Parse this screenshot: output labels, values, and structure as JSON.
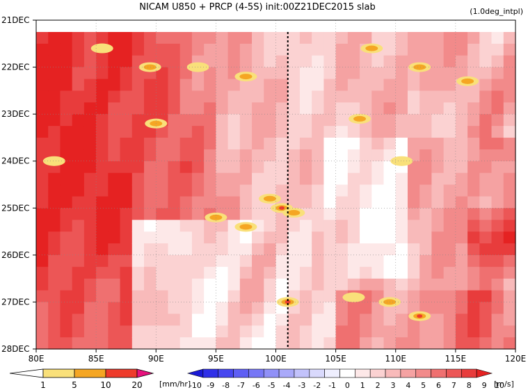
{
  "chart_data": {
    "type": "heatmap",
    "title": "NICAM   U850 + PRCP (4-5S) init:00Z21DEC2015 slab",
    "subtitle": "(1.0deg_intpl)",
    "x_ticks": [
      "80E",
      "85E",
      "90E",
      "95E",
      "100E",
      "105E",
      "110E",
      "115E",
      "120E"
    ],
    "x_tick_values": [
      80,
      85,
      90,
      95,
      100,
      105,
      110,
      115,
      120
    ],
    "y_ticks": [
      "21DEC",
      "22DEC",
      "23DEC",
      "24DEC",
      "25DEC",
      "26DEC",
      "27DEC",
      "28DEC"
    ],
    "y_tick_values": [
      21,
      22,
      23,
      24,
      25,
      26,
      27,
      28
    ],
    "xlim": [
      80,
      120
    ],
    "ylim": [
      28,
      21
    ],
    "grid": true,
    "vertical_marker_lon": 101,
    "precip_colorbar": {
      "tick_labels": [
        "1",
        "5",
        "10",
        "20"
      ],
      "unit": "[mm/hr]",
      "colors": [
        "#ffffff",
        "#f9e07a",
        "#f5a623",
        "#ee3b2b",
        "#e8127e"
      ]
    },
    "wind_colorbar": {
      "tick_labels": [
        "-10",
        "-9",
        "-8",
        "-7",
        "-6",
        "-5",
        "-4",
        "-3",
        "-2",
        "-1",
        "0",
        "1",
        "2",
        "3",
        "4",
        "5",
        "6",
        "7",
        "8",
        "9",
        "10"
      ],
      "unit": "[m/s]",
      "colors": [
        "#1a1ad6",
        "#2f2fe8",
        "#4646f0",
        "#5e5ef4",
        "#7777f6",
        "#9090f7",
        "#a9a9f9",
        "#c2c2fb",
        "#d9d9fc",
        "#eeeefe",
        "#ffffff",
        "#fde8e8",
        "#fbd2d2",
        "#f8baba",
        "#f5a2a2",
        "#f28a8a",
        "#ef7070",
        "#ec5656",
        "#e83c3c",
        "#e52222"
      ]
    },
    "description_data": {
      "u850_bands": [
        {
          "lon_range": [
            80,
            88
          ],
          "days": [
            21.5,
            28
          ],
          "u": 9.5
        },
        {
          "lon_range": [
            88,
            95
          ],
          "days": [
            21.5,
            25.5
          ],
          "u": 8.5
        },
        {
          "lon_range": [
            95,
            101
          ],
          "days": [
            22.5,
            25
          ],
          "u": 3
        },
        {
          "lon_range": [
            101,
            120
          ],
          "days": [
            21.5,
            28
          ],
          "u": 5
        }
      ],
      "precip_cells": [
        {
          "lon": 81.5,
          "day": 24.0,
          "p": 5
        },
        {
          "lon": 85.5,
          "day": 21.6,
          "p": 5
        },
        {
          "lon": 89.5,
          "day": 22.0,
          "p": 10
        },
        {
          "lon": 93.5,
          "day": 22.0,
          "p": 5
        },
        {
          "lon": 97.5,
          "day": 22.2,
          "p": 10
        },
        {
          "lon": 99.5,
          "day": 24.8,
          "p": 10
        },
        {
          "lon": 100.5,
          "day": 25.0,
          "p": 20
        },
        {
          "lon": 101.5,
          "day": 25.1,
          "p": 10
        },
        {
          "lon": 95,
          "day": 25.2,
          "p": 10
        },
        {
          "lon": 97.5,
          "day": 25.4,
          "p": 10
        },
        {
          "lon": 101,
          "day": 27.0,
          "p": 20
        },
        {
          "lon": 108,
          "day": 21.6,
          "p": 10
        },
        {
          "lon": 112,
          "day": 22.0,
          "p": 10
        },
        {
          "lon": 116,
          "day": 22.3,
          "p": 10
        },
        {
          "lon": 107,
          "day": 23.1,
          "p": 10
        },
        {
          "lon": 110.5,
          "day": 24.0,
          "p": 5
        },
        {
          "lon": 106.5,
          "day": 26.9,
          "p": 5
        },
        {
          "lon": 109.5,
          "day": 27.0,
          "p": 10
        },
        {
          "lon": 112,
          "day": 27.3,
          "p": 20
        },
        {
          "lon": 90,
          "day": 23.2,
          "p": 10
        }
      ]
    }
  }
}
